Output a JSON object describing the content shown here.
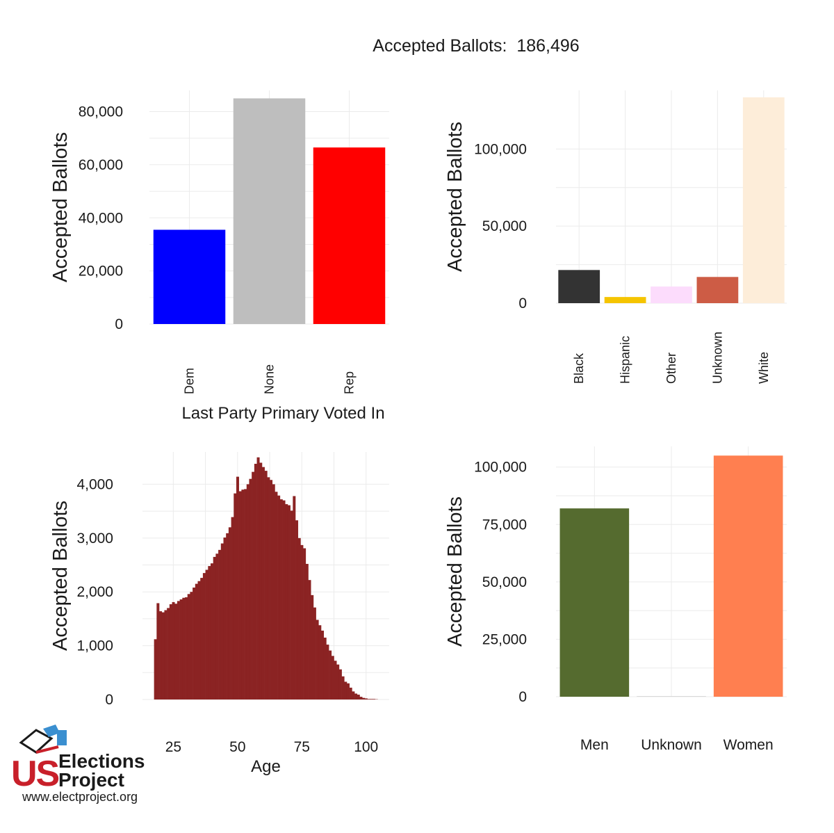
{
  "title": "Accepted Ballots:  186,496",
  "logo": {
    "text_us": "US",
    "text_elections": "Elections",
    "text_project": "Project",
    "url": "www.electproject.org",
    "colors": {
      "red": "#c8202a",
      "blue": "#3a8fd0",
      "dark": "#1a1a1a"
    }
  },
  "chart_data": [
    {
      "type": "bar",
      "position": "top-left",
      "categories": [
        "Dem",
        "None",
        "Rep"
      ],
      "values": [
        35500,
        85000,
        66500
      ],
      "colors": [
        "#0000ff",
        "#bebebe",
        "#ff0000"
      ],
      "xlabel": "Last Party Primary Voted In",
      "ylabel": "Accepted Ballots",
      "ylim": [
        0,
        88000
      ],
      "yticks": [
        0,
        20000,
        40000,
        60000,
        80000
      ],
      "ytick_labels": [
        "0",
        "20,000",
        "40,000",
        "60,000",
        "80,000"
      ],
      "grid": true
    },
    {
      "type": "bar",
      "position": "top-right",
      "categories": [
        "Black",
        "Hispanic",
        "Other",
        "Unknown",
        "White"
      ],
      "values": [
        21500,
        4000,
        10800,
        17000,
        133500
      ],
      "colors": [
        "#333333",
        "#f5c400",
        "#fcdcfc",
        "#cd5c45",
        "#fdedd9"
      ],
      "xlabel": "",
      "ylabel": "Accepted Ballots",
      "ylim": [
        0,
        138000
      ],
      "yticks": [
        0,
        50000,
        100000
      ],
      "ytick_labels": [
        "0",
        "50,000",
        "100,000"
      ],
      "grid": true
    },
    {
      "type": "bar",
      "subtype": "histogram",
      "position": "bottom-left",
      "x": [
        18,
        19,
        20,
        21,
        22,
        23,
        24,
        25,
        26,
        27,
        28,
        29,
        30,
        31,
        32,
        33,
        34,
        35,
        36,
        37,
        38,
        39,
        40,
        41,
        42,
        43,
        44,
        45,
        46,
        47,
        48,
        49,
        50,
        51,
        52,
        53,
        54,
        55,
        56,
        57,
        58,
        59,
        60,
        61,
        62,
        63,
        64,
        65,
        66,
        67,
        68,
        69,
        70,
        71,
        72,
        73,
        74,
        75,
        76,
        77,
        78,
        79,
        80,
        81,
        82,
        83,
        84,
        85,
        86,
        87,
        88,
        89,
        90,
        91,
        92,
        93,
        94,
        95,
        96,
        97,
        98,
        99,
        100,
        101,
        102,
        103,
        104
      ],
      "values": [
        1120,
        1790,
        1640,
        1620,
        1660,
        1700,
        1770,
        1810,
        1780,
        1830,
        1860,
        1890,
        1900,
        1960,
        2000,
        2080,
        2150,
        2200,
        2260,
        2350,
        2410,
        2480,
        2530,
        2650,
        2710,
        2780,
        2900,
        3010,
        3090,
        3200,
        3390,
        3830,
        4140,
        3870,
        3900,
        3910,
        4000,
        4100,
        4230,
        4380,
        4500,
        4400,
        4320,
        4250,
        4130,
        4080,
        4000,
        3860,
        3790,
        3720,
        3700,
        3630,
        3610,
        3510,
        3780,
        3330,
        3000,
        2870,
        2810,
        2520,
        2220,
        1940,
        1710,
        1480,
        1380,
        1280,
        1150,
        1020,
        910,
        810,
        720,
        650,
        560,
        430,
        330,
        300,
        220,
        150,
        110,
        90,
        50,
        30,
        20,
        10,
        10,
        10,
        5
      ],
      "color": "#8b2323",
      "xlabel": "Age",
      "ylabel": "Accepted Ballots",
      "xlim": [
        13,
        109
      ],
      "ylim": [
        0,
        4600
      ],
      "xticks": [
        25,
        50,
        75,
        100
      ],
      "xtick_labels": [
        "25",
        "50",
        "75",
        "100"
      ],
      "yticks": [
        0,
        1000,
        2000,
        3000,
        4000
      ],
      "ytick_labels": [
        "0",
        "1,000",
        "2,000",
        "3,000",
        "4,000"
      ],
      "grid": true
    },
    {
      "type": "bar",
      "position": "bottom-right",
      "categories": [
        "Men",
        "Unknown",
        "Women"
      ],
      "values": [
        82000,
        300,
        105000
      ],
      "colors": [
        "#556b2f",
        "#d8d8d8",
        "#ff7f50"
      ],
      "xlabel": "",
      "ylabel": "Accepted Ballots",
      "ylim": [
        0,
        109000
      ],
      "yticks": [
        0,
        25000,
        50000,
        75000,
        100000
      ],
      "ytick_labels": [
        "0",
        "25,000",
        "50,000",
        "75,000",
        "100,000"
      ],
      "grid": true
    }
  ]
}
